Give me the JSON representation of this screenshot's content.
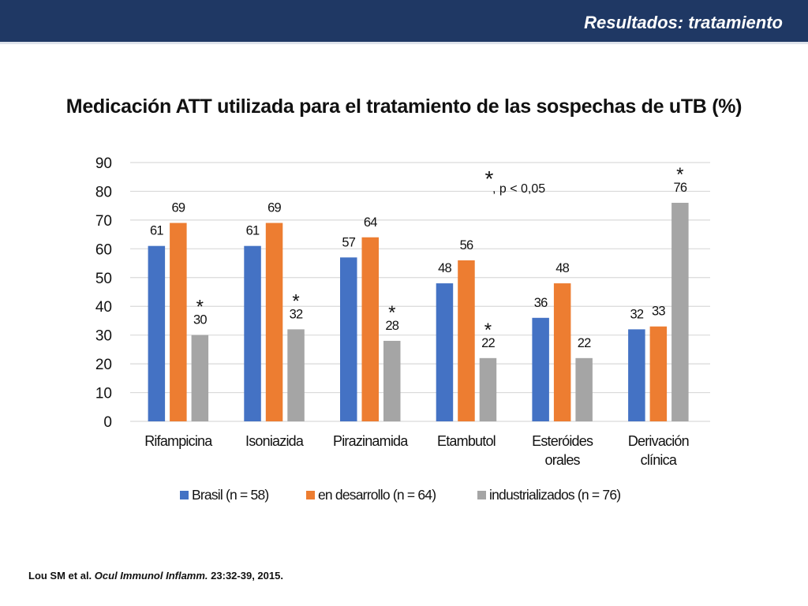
{
  "header": {
    "title": "Resultados: tratamiento"
  },
  "citation": {
    "authors": "Lou SM  et al. ",
    "journal": "Ocul Immunol Inflamm.",
    "details": " 23:32-39, 2015."
  },
  "chart_data": {
    "type": "bar",
    "title": "Medicación ATT utilizada para el tratamiento de las sospechas de uTB (%)",
    "xlabel": "",
    "ylabel": "",
    "ylim": [
      0,
      90
    ],
    "yticks": [
      0,
      10,
      20,
      30,
      40,
      50,
      60,
      70,
      80,
      90
    ],
    "grid": true,
    "legend_position": "bottom",
    "categories": [
      [
        "Rifampicina"
      ],
      [
        "Isoniazida"
      ],
      [
        "Pirazinamida"
      ],
      [
        "Etambutol"
      ],
      [
        "Esteróides",
        "orales"
      ],
      [
        "Derivación",
        "clínica"
      ]
    ],
    "series": [
      {
        "name": "Brasil (n = 58)",
        "color": "#4472c4",
        "values": [
          61,
          61,
          57,
          48,
          36,
          32
        ],
        "significant": [
          false,
          false,
          false,
          false,
          false,
          false
        ]
      },
      {
        "name": "en desarrollo (n = 64)",
        "color": "#ed7d31",
        "values": [
          69,
          69,
          64,
          56,
          48,
          33
        ],
        "significant": [
          false,
          false,
          false,
          false,
          false,
          false
        ]
      },
      {
        "name": "industrializados (n = 76)",
        "color": "#a5a5a5",
        "values": [
          30,
          32,
          28,
          22,
          22,
          76
        ],
        "significant": [
          true,
          true,
          true,
          true,
          false,
          true
        ]
      }
    ],
    "significance_marker": "*",
    "annotation": {
      "star": "*",
      "text": ", p < 0,05"
    }
  }
}
